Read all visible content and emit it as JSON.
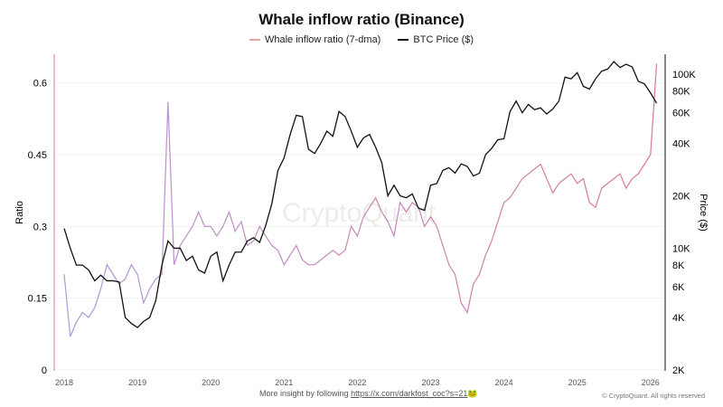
{
  "chart_data": {
    "type": "line",
    "title": "Whale inflow ratio (Binance)",
    "watermark": "CryptoQuant",
    "x_ticks": [
      "2018",
      "2019",
      "2020",
      "2021",
      "2022",
      "2023",
      "2024",
      "2025",
      "2026"
    ],
    "y_left": {
      "label": "Ratio",
      "ticks": [
        "0",
        "0.15",
        "0.3",
        "0.45",
        "0.6"
      ],
      "range": [
        0,
        0.66
      ]
    },
    "y_right": {
      "label": "Price ($)",
      "scale": "log",
      "ticks": [
        "2K",
        "4K",
        "6K",
        "8K",
        "10K",
        "20K",
        "40K",
        "60K",
        "80K",
        "100K"
      ],
      "tick_values": [
        2000,
        4000,
        6000,
        8000,
        10000,
        20000,
        40000,
        60000,
        80000,
        100000
      ],
      "range": [
        2000,
        130000
      ]
    },
    "grid": true,
    "legend_placement": "top",
    "start": "2018-01",
    "interval": "monthly",
    "series": [
      {
        "name": "Whale inflow ratio (7-dma)",
        "color_start": "#b497d6",
        "color_end": "#d9769a",
        "values": [
          0.2,
          0.07,
          0.1,
          0.12,
          0.11,
          0.13,
          0.17,
          0.22,
          0.2,
          0.18,
          0.19,
          0.22,
          0.2,
          0.14,
          0.17,
          0.19,
          0.2,
          0.56,
          0.22,
          0.26,
          0.28,
          0.3,
          0.33,
          0.3,
          0.3,
          0.28,
          0.3,
          0.33,
          0.29,
          0.31,
          0.26,
          0.27,
          0.3,
          0.28,
          0.26,
          0.25,
          0.22,
          0.24,
          0.26,
          0.23,
          0.22,
          0.22,
          0.23,
          0.24,
          0.25,
          0.24,
          0.25,
          0.3,
          0.28,
          0.32,
          0.34,
          0.36,
          0.33,
          0.31,
          0.28,
          0.35,
          0.33,
          0.35,
          0.34,
          0.3,
          0.32,
          0.3,
          0.26,
          0.22,
          0.2,
          0.14,
          0.12,
          0.18,
          0.2,
          0.24,
          0.27,
          0.31,
          0.35,
          0.36,
          0.38,
          0.4,
          0.41,
          0.42,
          0.43,
          0.4,
          0.37,
          0.39,
          0.4,
          0.41,
          0.39,
          0.4,
          0.35,
          0.34,
          0.38,
          0.39,
          0.4,
          0.41,
          0.38,
          0.4,
          0.41,
          0.43,
          0.45,
          0.64
        ]
      },
      {
        "name": "BTC Price ($)",
        "color": "#111111",
        "values": [
          13000,
          10000,
          8000,
          8000,
          7500,
          6500,
          7000,
          6500,
          6500,
          6400,
          4000,
          3700,
          3500,
          3800,
          4000,
          5000,
          8000,
          11000,
          10000,
          10000,
          8500,
          9000,
          7500,
          7200,
          9000,
          9500,
          6500,
          8000,
          9500,
          9500,
          11000,
          11500,
          10800,
          13500,
          18000,
          28000,
          33000,
          45000,
          58000,
          57000,
          37000,
          35000,
          40000,
          47000,
          44000,
          61000,
          57000,
          47000,
          38000,
          43000,
          45000,
          38000,
          31000,
          20000,
          23000,
          20000,
          19500,
          20500,
          17000,
          16500,
          23000,
          23500,
          28000,
          29000,
          27000,
          30500,
          29500,
          26000,
          27000,
          34500,
          37500,
          42000,
          42500,
          61000,
          70000,
          60000,
          67000,
          62500,
          64000,
          59000,
          63000,
          70000,
          96000,
          94000,
          102000,
          85000,
          82000,
          94000,
          104000,
          107000,
          118000,
          109000,
          114000,
          110000,
          91000,
          88000,
          78000,
          68000
        ]
      }
    ]
  },
  "footer": {
    "text": "More insight by following ",
    "link": "https://x.com/darkfost_coc?s=21",
    "emoji": "🐸",
    "copyright": "© CryptoQuant. All rights reserved"
  }
}
